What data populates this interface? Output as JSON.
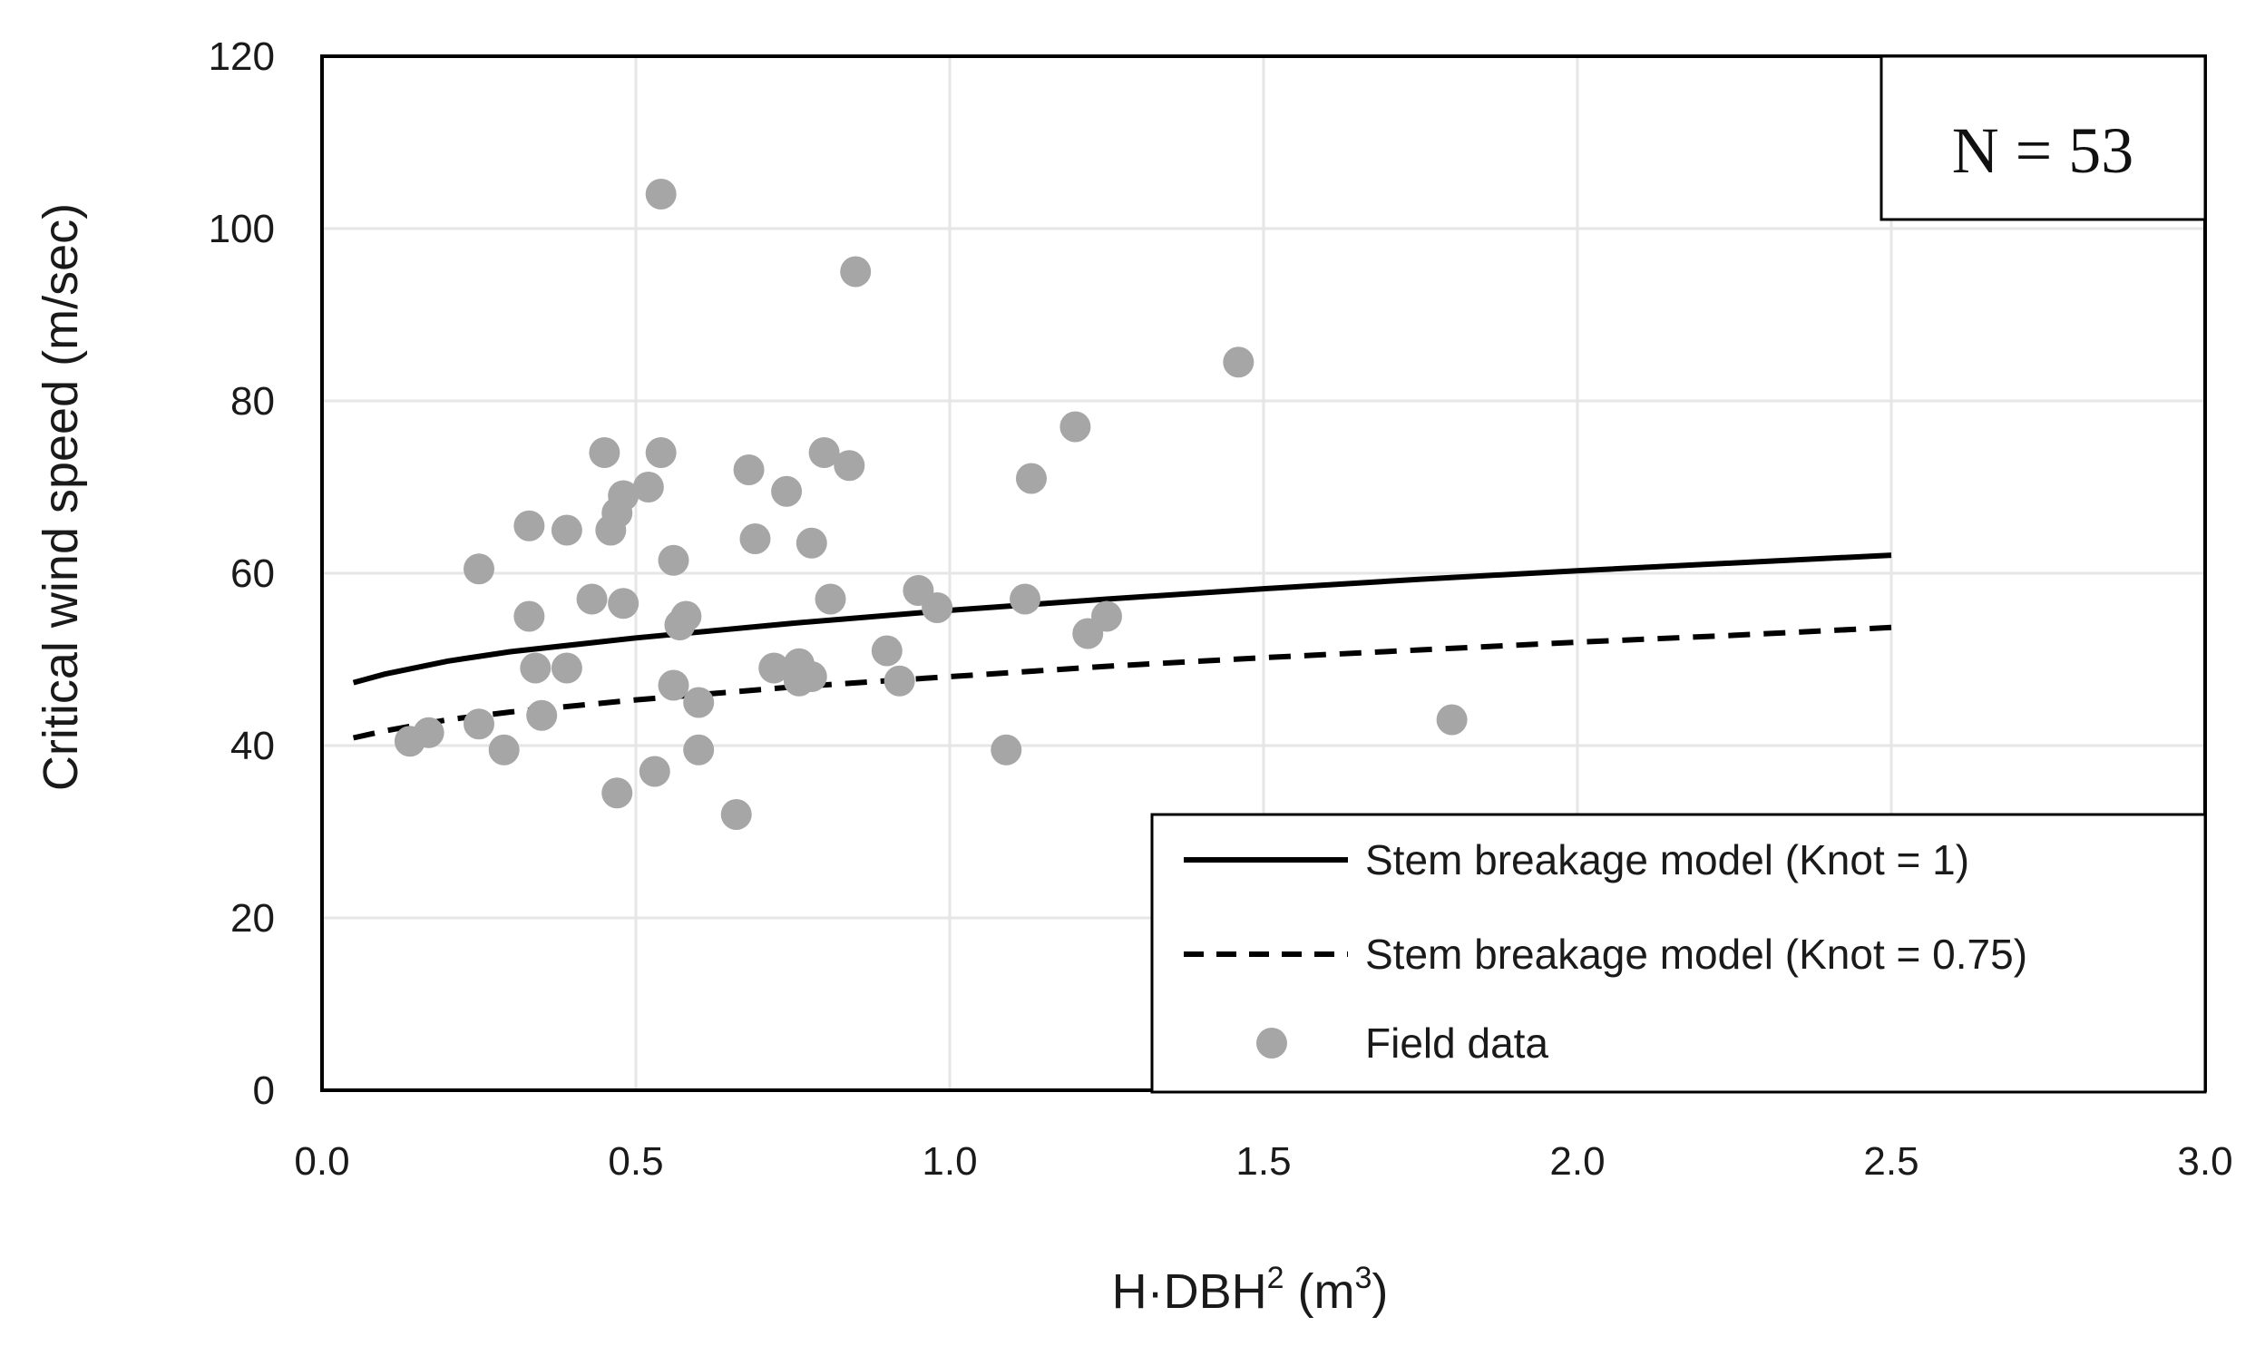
{
  "chart_data": {
    "type": "scatter",
    "title": "",
    "xlabel": {
      "base": "H·DBH",
      "sup1": "2",
      "mid": " (m",
      "sup2": "3",
      "end": ")"
    },
    "ylabel": "Critical wind speed (m/sec)",
    "xlim": [
      0,
      3
    ],
    "ylim": [
      0,
      120
    ],
    "xticks": [
      "0.0",
      "0.5",
      "1.0",
      "1.5",
      "2.0",
      "2.5",
      "3.0"
    ],
    "xtick_values": [
      0,
      0.5,
      1.0,
      1.5,
      2.0,
      2.5,
      3.0
    ],
    "yticks": [
      "0",
      "20",
      "40",
      "60",
      "80",
      "100",
      "120"
    ],
    "ytick_values": [
      0,
      20,
      40,
      60,
      80,
      100,
      120
    ],
    "grid": true,
    "annotation": "N = 53",
    "legend_position": "bottom-right",
    "colors": {
      "model": "#000000",
      "points": "#a6a6a6",
      "grid": "#e6e6e6"
    },
    "series": [
      {
        "name": "Stem breakage model (Knot = 1)",
        "style": "solid",
        "x": [
          0.05,
          0.1,
          0.2,
          0.3,
          0.5,
          0.75,
          1.0,
          1.25,
          1.5,
          1.75,
          2.0,
          2.25,
          2.5
        ],
        "y": [
          47.3,
          48.3,
          49.8,
          50.9,
          52.5,
          54.2,
          55.7,
          57.0,
          58.2,
          59.3,
          60.3,
          61.2,
          62.1
        ]
      },
      {
        "name": "Stem breakage model (Knot = 0.75)",
        "style": "dashed",
        "x": [
          0.05,
          0.1,
          0.2,
          0.3,
          0.5,
          0.75,
          1.0,
          1.25,
          1.5,
          1.75,
          2.0,
          2.25,
          2.5
        ],
        "y": [
          40.9,
          41.7,
          43.0,
          43.9,
          45.3,
          46.8,
          48.0,
          49.2,
          50.2,
          51.1,
          52.0,
          52.8,
          53.7
        ]
      },
      {
        "name": "Field data",
        "style": "points",
        "points": [
          [
            0.54,
            104
          ],
          [
            0.85,
            95
          ],
          [
            1.46,
            84.5
          ],
          [
            1.2,
            77
          ],
          [
            0.45,
            74
          ],
          [
            0.54,
            74
          ],
          [
            0.8,
            74
          ],
          [
            0.68,
            72
          ],
          [
            0.84,
            72.5
          ],
          [
            1.13,
            71
          ],
          [
            0.52,
            70
          ],
          [
            0.74,
            69.5
          ],
          [
            0.48,
            69
          ],
          [
            0.47,
            67
          ],
          [
            0.46,
            65
          ],
          [
            0.33,
            65.5
          ],
          [
            0.39,
            65
          ],
          [
            0.69,
            64
          ],
          [
            0.78,
            63.5
          ],
          [
            0.56,
            61.5
          ],
          [
            0.25,
            60.5
          ],
          [
            0.95,
            58
          ],
          [
            0.81,
            57
          ],
          [
            1.12,
            57
          ],
          [
            0.43,
            57
          ],
          [
            0.48,
            56.5
          ],
          [
            0.98,
            56
          ],
          [
            0.33,
            55
          ],
          [
            0.58,
            55
          ],
          [
            1.25,
            55
          ],
          [
            0.57,
            54
          ],
          [
            1.22,
            53
          ],
          [
            0.9,
            51
          ],
          [
            0.34,
            49
          ],
          [
            0.39,
            49
          ],
          [
            0.72,
            49
          ],
          [
            0.76,
            49.5
          ],
          [
            0.78,
            48
          ],
          [
            0.92,
            47.5
          ],
          [
            0.56,
            47
          ],
          [
            0.76,
            47.5
          ],
          [
            0.6,
            45
          ],
          [
            0.35,
            43.5
          ],
          [
            1.8,
            43
          ],
          [
            0.25,
            42.5
          ],
          [
            0.17,
            41.5
          ],
          [
            0.14,
            40.5
          ],
          [
            0.29,
            39.5
          ],
          [
            0.6,
            39.5
          ],
          [
            1.09,
            39.5
          ],
          [
            0.53,
            37
          ],
          [
            0.47,
            34.5
          ],
          [
            0.66,
            32
          ]
        ]
      }
    ]
  }
}
